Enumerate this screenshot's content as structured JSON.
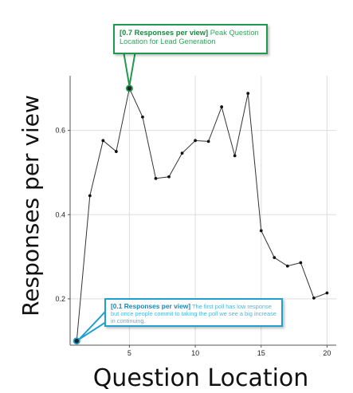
{
  "chart_data": {
    "type": "line",
    "title": "",
    "xlabel": "Question Location",
    "ylabel": "Responses per view",
    "xlim": [
      0.5,
      20.7
    ],
    "ylim": [
      0.09,
      0.73
    ],
    "xticks": [
      5,
      10,
      15,
      20
    ],
    "yticks": [
      0.2,
      0.4,
      0.6
    ],
    "ytick_labels": [
      "0.2",
      "0.4",
      "0.6"
    ],
    "grid": true,
    "x": [
      1,
      2,
      3,
      4,
      5,
      6,
      7,
      8,
      9,
      10,
      11,
      12,
      13,
      14,
      15,
      16,
      17,
      18,
      19,
      20
    ],
    "series": [
      {
        "values": [
          0.1,
          0.445,
          0.576,
          0.55,
          0.7,
          0.632,
          0.486,
          0.49,
          0.546,
          0.576,
          0.574,
          0.656,
          0.54,
          0.688,
          0.362,
          0.298,
          0.278,
          0.286,
          0.202,
          0.214
        ],
        "color": "#333333"
      }
    ],
    "annotations": [
      {
        "point_index": 4,
        "color": "#1f9a4c",
        "label_strong": "[0.7 Responses per view]",
        "label_text": "Peak Question Location for Lead Generation"
      },
      {
        "point_index": 0,
        "color": "#1fa0cf",
        "label_strong": "[0.1 Responses per view]",
        "label_text": "The first poll has low response but once people commit to taking the poll we see a big increase in continuing."
      }
    ]
  }
}
